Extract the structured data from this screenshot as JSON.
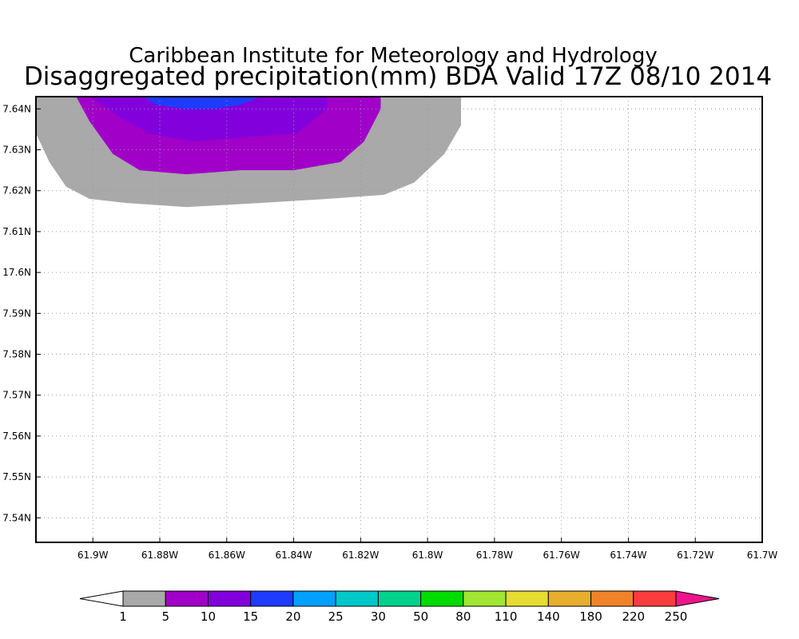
{
  "header": {
    "organization": "Caribbean Institute for Meteorology and Hydrology",
    "title": "Disaggregated precipitation(mm) BDA Valid 17Z 08/10 2014"
  },
  "map": {
    "lon_range": [
      -61.917,
      -61.7
    ],
    "lat_range": [
      17.534,
      17.643
    ],
    "lon_ticks": [
      {
        "value": -61.9,
        "label": "61.9W"
      },
      {
        "value": -61.88,
        "label": "61.88W"
      },
      {
        "value": -61.86,
        "label": "61.86W"
      },
      {
        "value": -61.84,
        "label": "61.84W"
      },
      {
        "value": -61.82,
        "label": "61.82W"
      },
      {
        "value": -61.8,
        "label": "61.8W"
      },
      {
        "value": -61.78,
        "label": "61.78W"
      },
      {
        "value": -61.76,
        "label": "61.76W"
      },
      {
        "value": -61.74,
        "label": "61.74W"
      },
      {
        "value": -61.72,
        "label": "61.72W"
      },
      {
        "value": -61.7,
        "label": "61.7W"
      }
    ],
    "lat_ticks": [
      {
        "value": 17.64,
        "label": "7.64N"
      },
      {
        "value": 17.63,
        "label": "7.63N"
      },
      {
        "value": 17.62,
        "label": "7.62N"
      },
      {
        "value": 17.61,
        "label": "7.61N"
      },
      {
        "value": 17.6,
        "label": "17.6N"
      },
      {
        "value": 17.59,
        "label": "7.59N"
      },
      {
        "value": 17.58,
        "label": "7.58N"
      },
      {
        "value": 17.57,
        "label": "7.57N"
      },
      {
        "value": 17.56,
        "label": "7.56N"
      },
      {
        "value": 17.55,
        "label": "7.55N"
      },
      {
        "value": 17.54,
        "label": "7.54N"
      }
    ],
    "grid": true,
    "contours": [
      {
        "level": "1-5",
        "color": "#a9a9a9",
        "points": [
          [
            -61.917,
            17.643
          ],
          [
            -61.79,
            17.643
          ],
          [
            -61.79,
            17.636
          ],
          [
            -61.795,
            17.629
          ],
          [
            -61.804,
            17.622
          ],
          [
            -61.813,
            17.619
          ],
          [
            -61.83,
            17.618
          ],
          [
            -61.85,
            17.617
          ],
          [
            -61.872,
            17.616
          ],
          [
            -61.89,
            17.617
          ],
          [
            -61.901,
            17.618
          ],
          [
            -61.908,
            17.621
          ],
          [
            -61.913,
            17.627
          ],
          [
            -61.917,
            17.634
          ]
        ]
      },
      {
        "level": "5-10",
        "color": "#a000c8",
        "points": [
          [
            -61.905,
            17.643
          ],
          [
            -61.814,
            17.643
          ],
          [
            -61.814,
            17.64
          ],
          [
            -61.819,
            17.632
          ],
          [
            -61.826,
            17.627
          ],
          [
            -61.84,
            17.625
          ],
          [
            -61.856,
            17.625
          ],
          [
            -61.872,
            17.624
          ],
          [
            -61.886,
            17.625
          ],
          [
            -61.894,
            17.629
          ],
          [
            -61.901,
            17.637
          ]
        ]
      },
      {
        "level": "10-15",
        "color": "#8200dc",
        "points": [
          [
            -61.901,
            17.643
          ],
          [
            -61.83,
            17.643
          ],
          [
            -61.83,
            17.64
          ],
          [
            -61.839,
            17.634
          ],
          [
            -61.856,
            17.633
          ],
          [
            -61.87,
            17.632
          ],
          [
            -61.883,
            17.634
          ],
          [
            -61.892,
            17.638
          ]
        ]
      },
      {
        "level": "15-20",
        "color": "#1e3cff",
        "points": [
          [
            -61.885,
            17.643
          ],
          [
            -61.85,
            17.643
          ],
          [
            -61.856,
            17.641
          ],
          [
            -61.864,
            17.64
          ],
          [
            -61.872,
            17.64
          ],
          [
            -61.881,
            17.641
          ]
        ]
      }
    ]
  },
  "colorbar": {
    "under_color": "#ffffff",
    "over_color": "#f0148c",
    "bins": [
      {
        "color": "#a9a9a9"
      },
      {
        "color": "#a000c8"
      },
      {
        "color": "#8200dc"
      },
      {
        "color": "#1e3cff"
      },
      {
        "color": "#00a0ff"
      },
      {
        "color": "#00c8c8"
      },
      {
        "color": "#00d28c"
      },
      {
        "color": "#00dc00"
      },
      {
        "color": "#a0e632"
      },
      {
        "color": "#e6dc32"
      },
      {
        "color": "#e6af2d"
      },
      {
        "color": "#f08228"
      },
      {
        "color": "#fa3c3c"
      }
    ],
    "labels": [
      "1",
      "5",
      "10",
      "15",
      "20",
      "25",
      "30",
      "50",
      "80",
      "110",
      "140",
      "180",
      "220",
      "250"
    ]
  }
}
